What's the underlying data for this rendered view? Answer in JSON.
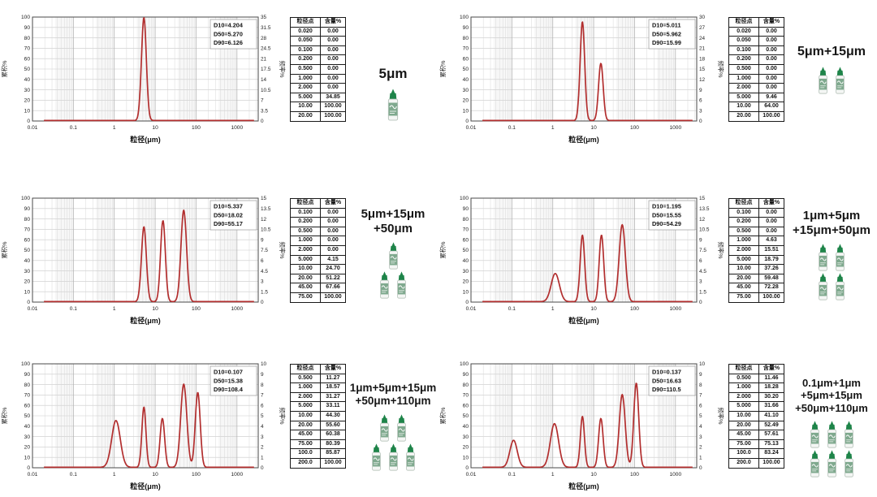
{
  "shared": {
    "xlabel": "粒径(μm)",
    "left_axis_label": "累积%",
    "right_axis_label": "频率%",
    "left_axis": {
      "min": 0,
      "max": 100,
      "step": 10
    },
    "x_ticks": [
      "0.01",
      "0.1",
      "1",
      "10",
      "100",
      "1000"
    ],
    "table_headers": [
      "粒径点",
      "含量%"
    ],
    "curve_color": "#b22e2e",
    "grid_color": "#c9c9c9",
    "bottle_colors": {
      "cap": "#1e8449",
      "label": "#7fa98e",
      "body": "#f4f6f4"
    }
  },
  "chart_data": [
    {
      "type": "line",
      "name": "5μm",
      "label_lines": [
        "5μm"
      ],
      "legend": [
        "D10=4.204",
        "D50=5.270",
        "D90=6.126"
      ],
      "right_axis": {
        "min": 0,
        "max": 35,
        "step": 3.5
      },
      "x_range": [
        0.01,
        3300
      ],
      "ylim": [
        0,
        100
      ],
      "peaks": [
        {
          "x_um": 5.3,
          "height_pct": 99,
          "sigma_log10": 0.06
        }
      ],
      "table_rows": [
        [
          "0.020",
          "0.00"
        ],
        [
          "0.050",
          "0.00"
        ],
        [
          "0.100",
          "0.00"
        ],
        [
          "0.200",
          "0.00"
        ],
        [
          "0.500",
          "0.00"
        ],
        [
          "1.000",
          "0.00"
        ],
        [
          "2.000",
          "0.00"
        ],
        [
          "5.000",
          "34.85"
        ],
        [
          "10.00",
          "100.00"
        ],
        [
          "20.00",
          "100.00"
        ]
      ],
      "bottle_rows": [
        1
      ]
    },
    {
      "type": "line",
      "name": "5μm+15μm",
      "label_lines": [
        "5μm+15μm"
      ],
      "legend": [
        "D10=5.011",
        "D50=5.962",
        "D90=15.99"
      ],
      "right_axis": {
        "min": 0,
        "max": 30,
        "step": 3
      },
      "x_range": [
        0.01,
        3300
      ],
      "ylim": [
        0,
        100
      ],
      "peaks": [
        {
          "x_um": 5.3,
          "height_pct": 95,
          "sigma_log10": 0.056
        },
        {
          "x_um": 15,
          "height_pct": 55,
          "sigma_log10": 0.056
        }
      ],
      "table_rows": [
        [
          "0.020",
          "0.00"
        ],
        [
          "0.050",
          "0.00"
        ],
        [
          "0.100",
          "0.00"
        ],
        [
          "0.200",
          "0.00"
        ],
        [
          "0.500",
          "0.00"
        ],
        [
          "1.000",
          "0.00"
        ],
        [
          "2.000",
          "0.00"
        ],
        [
          "5.000",
          "9.46"
        ],
        [
          "10.00",
          "64.00"
        ],
        [
          "20.00",
          "100.00"
        ]
      ],
      "bottle_rows": [
        2
      ]
    },
    {
      "type": "line",
      "name": "5μm+15μm+50μm",
      "label_lines": [
        "5μm+15μm",
        "+50μm"
      ],
      "legend": [
        "D10=5.337",
        "D50=18.02",
        "D90=55.17"
      ],
      "right_axis": {
        "min": 0,
        "max": 15,
        "step": 1.5
      },
      "x_range": [
        0.01,
        3300
      ],
      "ylim": [
        0,
        100
      ],
      "peaks": [
        {
          "x_um": 5.3,
          "height_pct": 72,
          "sigma_log10": 0.06
        },
        {
          "x_um": 15.5,
          "height_pct": 78,
          "sigma_log10": 0.058
        },
        {
          "x_um": 50,
          "height_pct": 88,
          "sigma_log10": 0.068
        }
      ],
      "table_rows": [
        [
          "0.100",
          "0.00"
        ],
        [
          "0.200",
          "0.00"
        ],
        [
          "0.500",
          "0.00"
        ],
        [
          "1.000",
          "0.00"
        ],
        [
          "2.000",
          "0.00"
        ],
        [
          "5.000",
          "4.15"
        ],
        [
          "10.00",
          "24.70"
        ],
        [
          "20.00",
          "51.22"
        ],
        [
          "45.00",
          "67.66"
        ],
        [
          "75.00",
          "100.00"
        ]
      ],
      "bottle_rows": [
        1,
        2
      ]
    },
    {
      "type": "line",
      "name": "1μm+5μm+15μm+50μm",
      "label_lines": [
        "1μm+5μm",
        "+15μm+50μm"
      ],
      "legend": [
        "D10=1.195",
        "D50=15.55",
        "D90=54.29"
      ],
      "right_axis": {
        "min": 0,
        "max": 15,
        "step": 1.5
      },
      "x_range": [
        0.01,
        3300
      ],
      "ylim": [
        0,
        100
      ],
      "peaks": [
        {
          "x_um": 1.15,
          "height_pct": 27,
          "sigma_log10": 0.1
        },
        {
          "x_um": 5.3,
          "height_pct": 64,
          "sigma_log10": 0.055
        },
        {
          "x_um": 15.5,
          "height_pct": 64,
          "sigma_log10": 0.055
        },
        {
          "x_um": 50,
          "height_pct": 74,
          "sigma_log10": 0.075
        }
      ],
      "table_rows": [
        [
          "0.100",
          "0.00"
        ],
        [
          "0.200",
          "0.00"
        ],
        [
          "0.500",
          "0.00"
        ],
        [
          "1.000",
          "4.63"
        ],
        [
          "2.000",
          "15.51"
        ],
        [
          "5.000",
          "18.79"
        ],
        [
          "10.00",
          "37.26"
        ],
        [
          "20.00",
          "59.48"
        ],
        [
          "45.00",
          "72.28"
        ],
        [
          "75.00",
          "100.00"
        ]
      ],
      "bottle_rows": [
        2,
        2
      ]
    },
    {
      "type": "line",
      "name": "1μm+5μm+15μm+50μm+110μm",
      "label_lines": [
        "1μm+5μm+15μm",
        "+50μm+110μm"
      ],
      "legend": [
        "D10=0.107",
        "D50=15.38",
        "D90=108.4"
      ],
      "right_axis": {
        "min": 0,
        "max": 10,
        "step": 1
      },
      "x_range": [
        0.01,
        3300
      ],
      "ylim": [
        0,
        100
      ],
      "peaks": [
        {
          "x_um": 1.1,
          "height_pct": 45,
          "sigma_log10": 0.105
        },
        {
          "x_um": 5.3,
          "height_pct": 58,
          "sigma_log10": 0.05
        },
        {
          "x_um": 15,
          "height_pct": 47,
          "sigma_log10": 0.055
        },
        {
          "x_um": 50,
          "height_pct": 80,
          "sigma_log10": 0.075
        },
        {
          "x_um": 110,
          "height_pct": 72,
          "sigma_log10": 0.06
        }
      ],
      "table_rows": [
        [
          "0.500",
          "11.27"
        ],
        [
          "1.000",
          "18.57"
        ],
        [
          "2.000",
          "31.27"
        ],
        [
          "5.000",
          "33.11"
        ],
        [
          "10.00",
          "44.30"
        ],
        [
          "20.00",
          "55.60"
        ],
        [
          "45.00",
          "60.38"
        ],
        [
          "75.00",
          "80.39"
        ],
        [
          "100.0",
          "85.87"
        ],
        [
          "200.0",
          "100.00"
        ]
      ],
      "bottle_rows": [
        2,
        3
      ]
    },
    {
      "type": "line",
      "name": "0.1μm+1μm+5μm+15μm+50μm+110μm",
      "label_lines": [
        "0.1μm+1μm",
        "+5μm+15μm",
        "+50μm+110μm"
      ],
      "legend": [
        "D10=0.137",
        "D50=16.63",
        "D90=110.5"
      ],
      "right_axis": {
        "min": 0,
        "max": 10,
        "step": 1
      },
      "x_range": [
        0.01,
        3300
      ],
      "ylim": [
        0,
        100
      ],
      "peaks": [
        {
          "x_um": 0.11,
          "height_pct": 26,
          "sigma_log10": 0.09
        },
        {
          "x_um": 1.1,
          "height_pct": 42,
          "sigma_log10": 0.1
        },
        {
          "x_um": 5.3,
          "height_pct": 49,
          "sigma_log10": 0.05
        },
        {
          "x_um": 15,
          "height_pct": 47,
          "sigma_log10": 0.055
        },
        {
          "x_um": 50,
          "height_pct": 70,
          "sigma_log10": 0.072
        },
        {
          "x_um": 110,
          "height_pct": 81,
          "sigma_log10": 0.06
        }
      ],
      "table_rows": [
        [
          "0.500",
          "11.46"
        ],
        [
          "1.000",
          "18.28"
        ],
        [
          "2.000",
          "30.20"
        ],
        [
          "5.000",
          "31.66"
        ],
        [
          "10.00",
          "41.10"
        ],
        [
          "20.00",
          "52.49"
        ],
        [
          "45.00",
          "57.61"
        ],
        [
          "75.00",
          "75.13"
        ],
        [
          "100.0",
          "83.24"
        ],
        [
          "200.0",
          "100.00"
        ]
      ],
      "bottle_rows": [
        3,
        3
      ]
    }
  ]
}
